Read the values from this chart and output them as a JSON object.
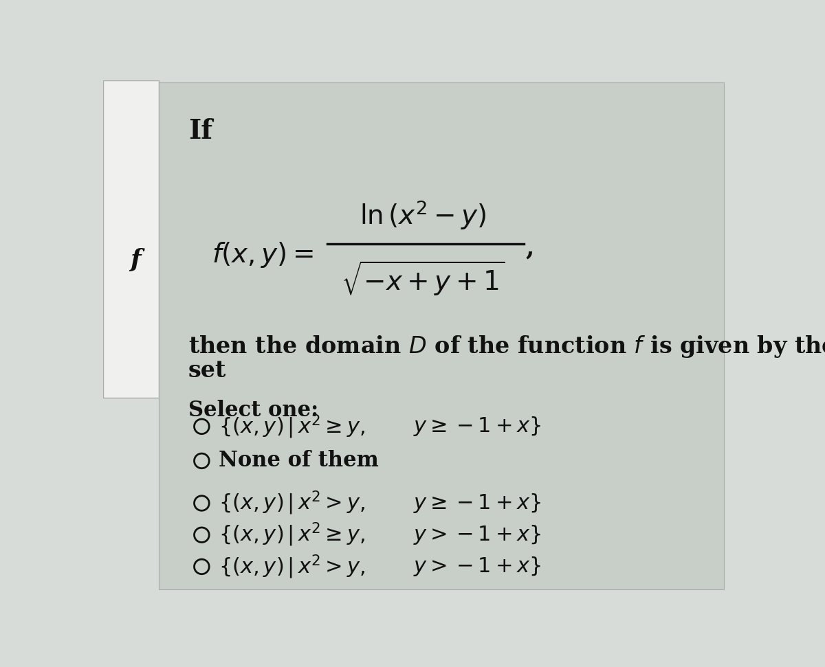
{
  "outer_bg": "#d8dcd8",
  "left_panel_color": "#f0f0ee",
  "main_panel_color": "#c8cfc8",
  "text_color": "#111111",
  "title": "If",
  "left_f": "f",
  "select_label": "Select one:",
  "desc_line1": "then the domain ",
  "desc_D": "D",
  "desc_line2": " of the function ",
  "desc_f": "f",
  "desc_line3": " is given by the",
  "desc_set": "set",
  "options": [
    [
      "{(x, y)|x² ≥ y,",
      "y ≥ −1 + x}"
    ],
    [
      "None of them",
      ""
    ],
    [
      "{(x, y)|x² > y,",
      "y ≥ −1 + x}"
    ],
    [
      "{(x, y)|x² ≥ y,",
      "y > −1 + x}"
    ],
    [
      "{(x, y)|x² > y,",
      "y > −1 + x}"
    ]
  ]
}
